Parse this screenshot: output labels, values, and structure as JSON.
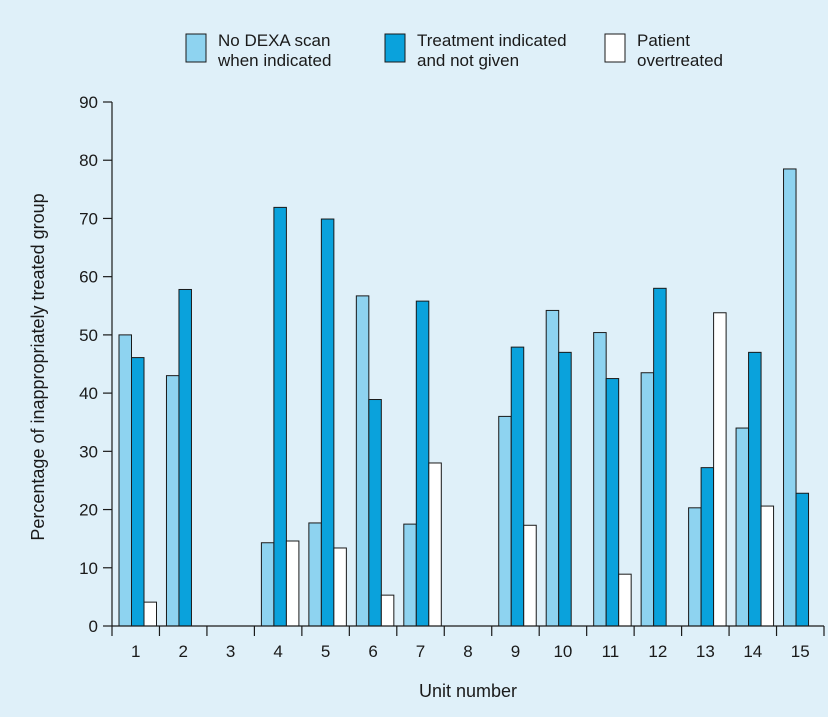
{
  "chart_data": {
    "type": "bar",
    "xlabel": "Unit number",
    "ylabel": "Percentage of inappropriately treated group",
    "ylim": [
      0,
      90
    ],
    "yticks": [
      0,
      10,
      20,
      30,
      40,
      50,
      60,
      70,
      80,
      90
    ],
    "categories": [
      "1",
      "2",
      "3",
      "4",
      "5",
      "6",
      "7",
      "8",
      "9",
      "10",
      "11",
      "12",
      "13",
      "14",
      "15"
    ],
    "legend_position": "top",
    "grid": false,
    "series": [
      {
        "name_lines": [
          "No DEXA scan",
          "when indicated"
        ],
        "color": "#8ed3f0",
        "values": [
          50,
          43,
          null,
          14.3,
          17.7,
          56.7,
          17.5,
          null,
          36,
          54.2,
          50.4,
          43.5,
          20.3,
          34,
          78.5
        ]
      },
      {
        "name_lines": [
          "Treatment indicated",
          "and not given"
        ],
        "color": "#0aa2dc",
        "values": [
          46.1,
          57.8,
          null,
          71.9,
          69.9,
          38.9,
          55.8,
          null,
          47.9,
          47,
          42.5,
          58,
          27.2,
          47,
          22.8
        ]
      },
      {
        "name_lines": [
          "Patient",
          "overtreated"
        ],
        "color": "#ffffff",
        "values": [
          4.1,
          null,
          null,
          14.6,
          13.4,
          5.3,
          28,
          null,
          17.3,
          null,
          8.9,
          null,
          53.8,
          20.6,
          null
        ]
      }
    ]
  }
}
